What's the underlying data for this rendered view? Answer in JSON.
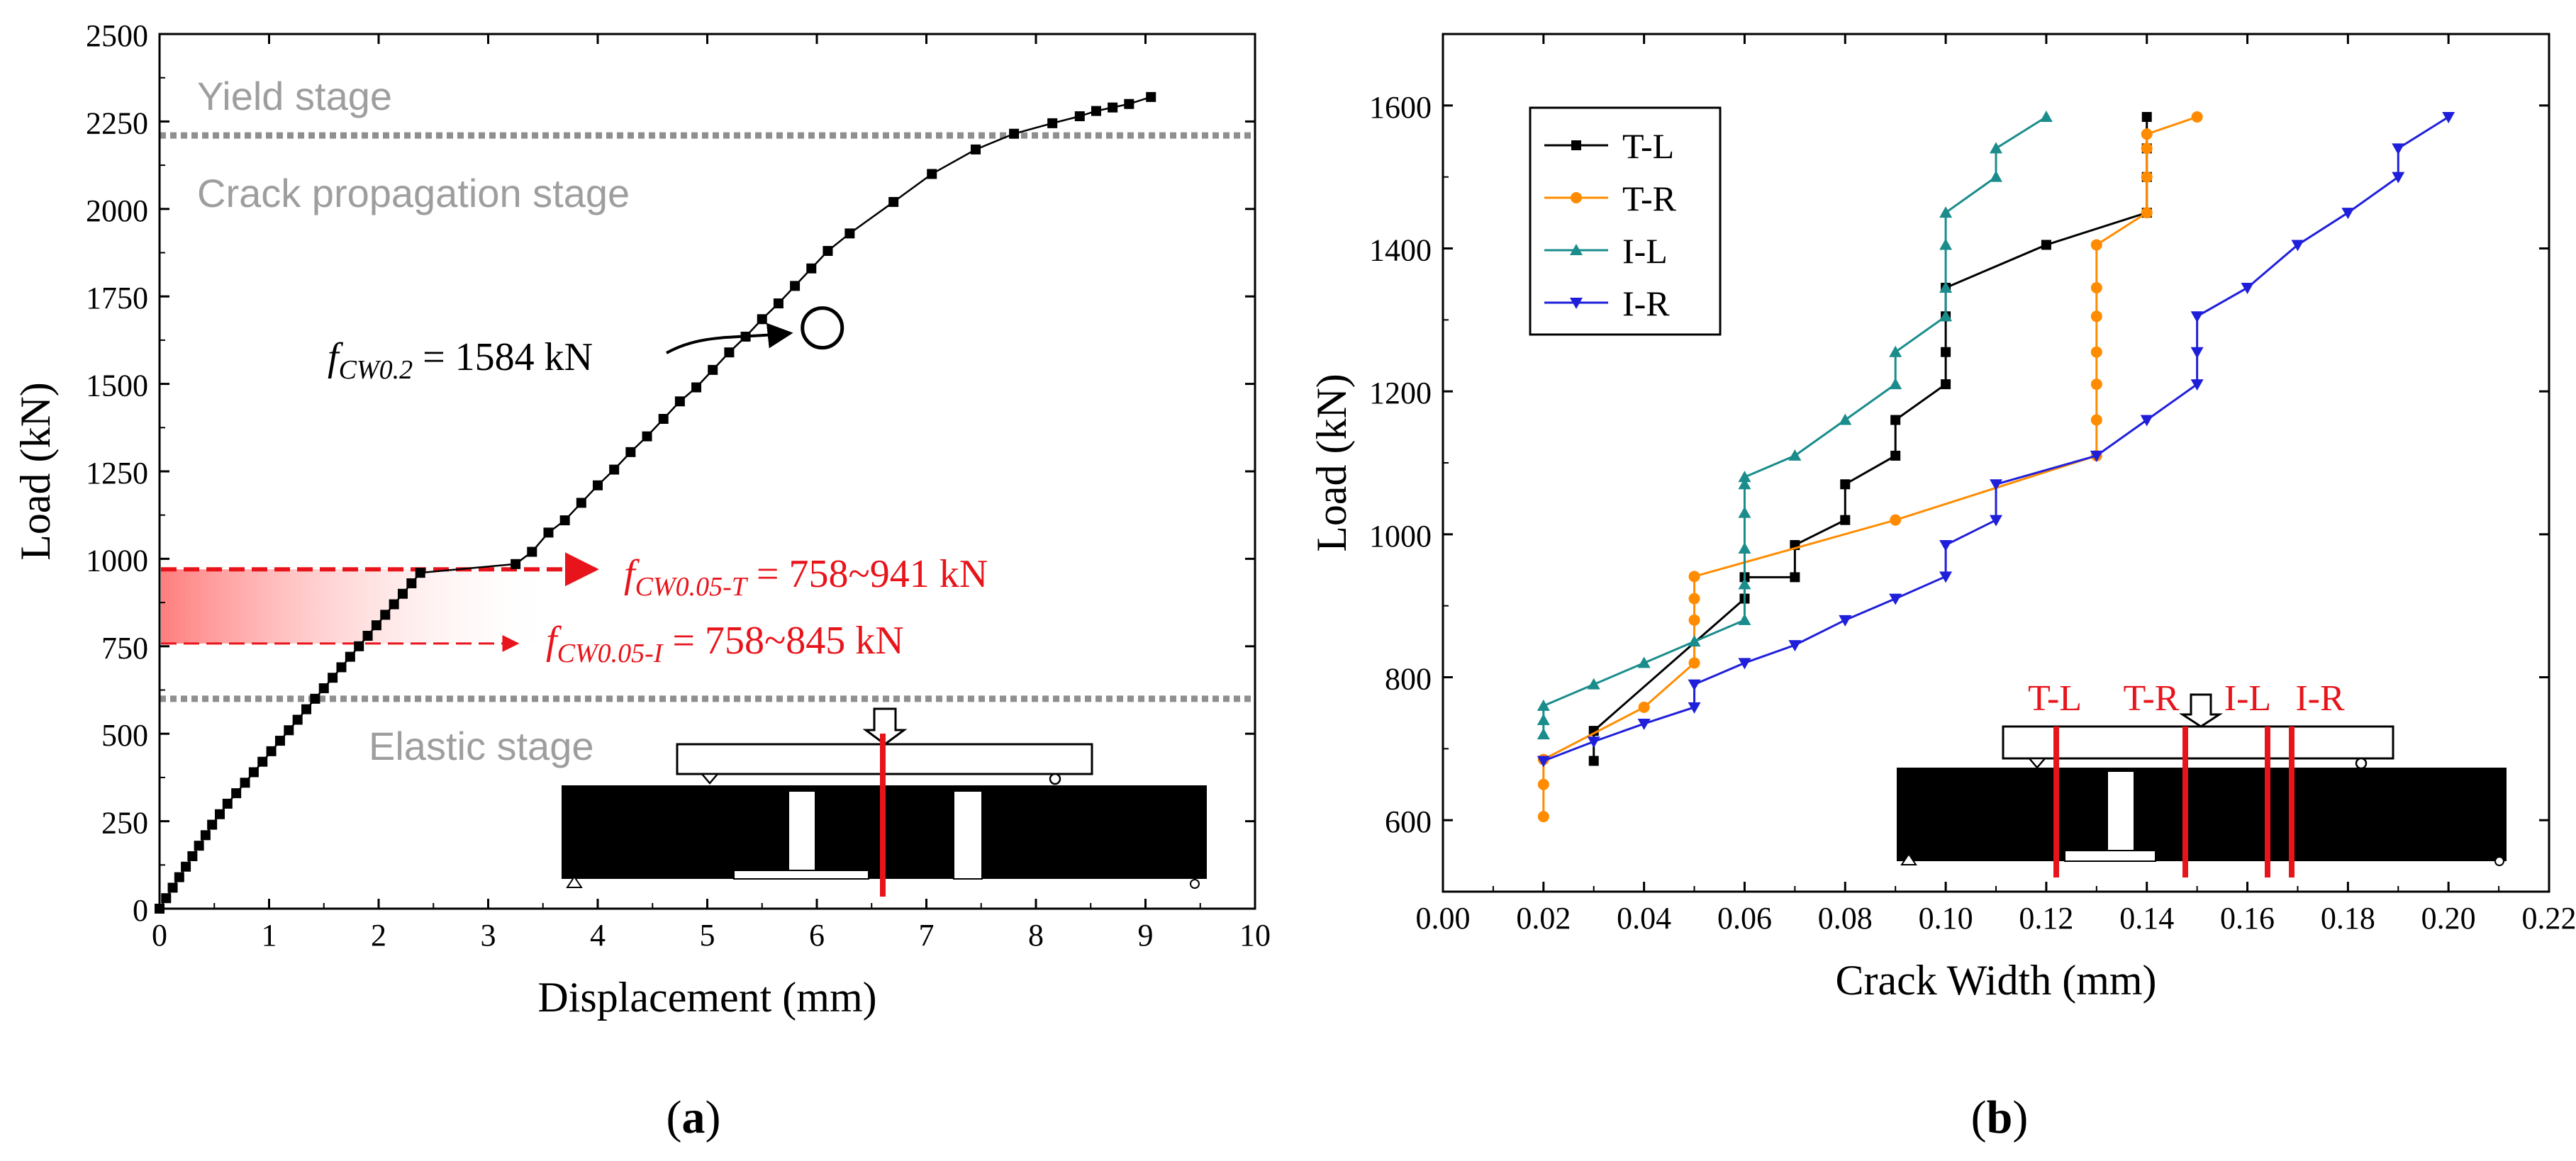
{
  "chart_data": [
    {
      "panel_label": "a",
      "type": "line",
      "xlabel": "Displacement (mm)",
      "ylabel": "Load (kN)",
      "xlim": [
        0,
        10
      ],
      "ylim": [
        0,
        2500
      ],
      "xticks": [
        "0",
        "1",
        "2",
        "3",
        "4",
        "5",
        "6",
        "7",
        "8",
        "9",
        "10"
      ],
      "yticks": [
        "0",
        "250",
        "500",
        "750",
        "1000",
        "1250",
        "1500",
        "1750",
        "2000",
        "2250",
        "2500"
      ],
      "stage_lines": [
        2210,
        600
      ],
      "stage_labels": {
        "yield": "Yield stage",
        "crack": "Crack propagation stage",
        "elastic": "Elastic stage"
      },
      "highlight_band": [
        758,
        970
      ],
      "highlight_point": {
        "x": 6.05,
        "y": 1660
      },
      "annotations": {
        "cw02_prefix": "f",
        "cw02_sub": "CW0.2",
        "cw02_text": " = 1584 kN",
        "cw05t_prefix": "f",
        "cw05t_sub": "CW0.05-T",
        "cw05t_text": " = 758~941 kN",
        "cw05i_prefix": "f",
        "cw05i_sub": "CW0.05-I",
        "cw05i_text": " = 758~845 kN"
      },
      "series": [
        {
          "name": "Load-displacement",
          "color": "#000000",
          "x": [
            0,
            0.06,
            0.12,
            0.18,
            0.24,
            0.3,
            0.36,
            0.42,
            0.48,
            0.55,
            0.62,
            0.7,
            0.78,
            0.86,
            0.94,
            1.02,
            1.1,
            1.18,
            1.26,
            1.34,
            1.42,
            1.5,
            1.58,
            1.66,
            1.74,
            1.82,
            1.9,
            1.98,
            2.06,
            2.14,
            2.22,
            2.3,
            2.38,
            3.25,
            3.4,
            3.55,
            3.7,
            3.85,
            4.0,
            4.15,
            4.3,
            4.45,
            4.6,
            4.75,
            4.9,
            5.05,
            5.2,
            5.35,
            5.5,
            5.65,
            5.8,
            5.95,
            6.1,
            6.3,
            6.7,
            7.05,
            7.45,
            7.8,
            8.15,
            8.4,
            8.55,
            8.7,
            8.85,
            9.05
          ],
          "y": [
            0,
            30,
            60,
            90,
            120,
            150,
            180,
            210,
            240,
            270,
            300,
            330,
            360,
            390,
            420,
            450,
            480,
            510,
            540,
            570,
            600,
            630,
            660,
            690,
            720,
            750,
            780,
            810,
            840,
            870,
            900,
            930,
            960,
            985,
            1020,
            1075,
            1110,
            1160,
            1210,
            1255,
            1305,
            1350,
            1400,
            1450,
            1490,
            1540,
            1590,
            1635,
            1685,
            1730,
            1780,
            1830,
            1880,
            1930,
            2020,
            2100,
            2170,
            2215,
            2245,
            2265,
            2280,
            2290,
            2300,
            2320
          ]
        }
      ]
    },
    {
      "panel_label": "b",
      "type": "line",
      "xlabel": "Crack Width (mm)",
      "ylabel": "Load (kN)",
      "xlim": [
        0.0,
        0.22
      ],
      "ylim": [
        500,
        1700
      ],
      "xticks": [
        "0.00",
        "0.02",
        "0.04",
        "0.06",
        "0.08",
        "0.10",
        "0.12",
        "0.14",
        "0.16",
        "0.18",
        "0.20",
        "0.22"
      ],
      "yticks": [
        "600",
        "800",
        "1000",
        "1200",
        "1400",
        "1600"
      ],
      "schematic_labels": [
        "T-L",
        "T-R",
        "I-L",
        "I-R"
      ],
      "series": [
        {
          "name": "T-L",
          "color": "#000000",
          "marker": "square",
          "x": [
            0.03,
            0.03,
            0.06,
            0.06,
            0.07,
            0.07,
            0.08,
            0.08,
            0.09,
            0.09,
            0.1,
            0.1,
            0.1,
            0.1,
            0.12,
            0.14,
            0.14,
            0.14,
            0.14
          ],
          "y": [
            683,
            725,
            910,
            940,
            940,
            985,
            1020,
            1070,
            1110,
            1160,
            1210,
            1255,
            1305,
            1345,
            1405,
            1450,
            1500,
            1540,
            1584
          ]
        },
        {
          "name": "T-R",
          "color": "#ff8c00",
          "marker": "circle",
          "x": [
            0.02,
            0.02,
            0.02,
            0.04,
            0.05,
            0.05,
            0.05,
            0.05,
            0.09,
            0.13,
            0.13,
            0.13,
            0.13,
            0.13,
            0.13,
            0.13,
            0.14,
            0.14,
            0.14,
            0.14,
            0.15
          ],
          "y": [
            605,
            650,
            685,
            758,
            820,
            880,
            910,
            941,
            1020,
            1110,
            1160,
            1210,
            1255,
            1305,
            1345,
            1405,
            1450,
            1500,
            1540,
            1560,
            1584
          ]
        },
        {
          "name": "I-L",
          "color": "#1a8c8c",
          "marker": "triangle-up",
          "x": [
            0.02,
            0.02,
            0.02,
            0.03,
            0.04,
            0.05,
            0.06,
            0.06,
            0.06,
            0.06,
            0.06,
            0.06,
            0.07,
            0.08,
            0.09,
            0.09,
            0.1,
            0.1,
            0.1,
            0.1,
            0.11,
            0.11,
            0.12
          ],
          "y": [
            720,
            740,
            760,
            790,
            820,
            850,
            880,
            930,
            980,
            1030,
            1070,
            1080,
            1110,
            1160,
            1210,
            1255,
            1305,
            1345,
            1405,
            1450,
            1500,
            1540,
            1584
          ]
        },
        {
          "name": "I-R",
          "color": "#1f1fdb",
          "marker": "triangle-down",
          "x": [
            0.02,
            0.03,
            0.04,
            0.05,
            0.05,
            0.06,
            0.07,
            0.08,
            0.09,
            0.1,
            0.1,
            0.11,
            0.11,
            0.13,
            0.14,
            0.15,
            0.15,
            0.15,
            0.16,
            0.17,
            0.18,
            0.19,
            0.19,
            0.2
          ],
          "y": [
            683,
            710,
            735,
            758,
            790,
            820,
            845,
            880,
            910,
            941,
            985,
            1020,
            1070,
            1110,
            1160,
            1210,
            1255,
            1305,
            1345,
            1405,
            1450,
            1500,
            1540,
            1584
          ]
        }
      ]
    }
  ]
}
